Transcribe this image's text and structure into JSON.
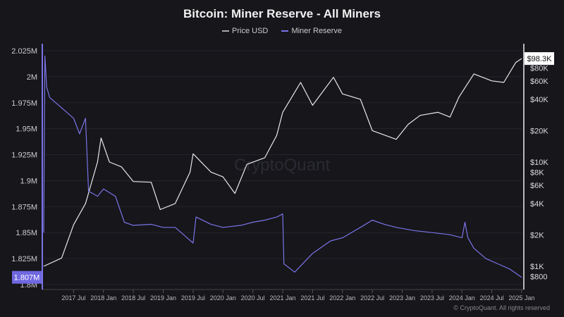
{
  "chart_data": {
    "type": "line",
    "title": "Bitcoin: Miner Reserve - All Miners",
    "legend_position": "top",
    "watermark": "CryptoQuant",
    "copyright": "© CryptoQuant. All rights reserved",
    "x_ticks": [
      "2017 Jul",
      "2018 Jan",
      "2018 Jul",
      "2019 Jan",
      "2019 Jul",
      "2020 Jan",
      "2020 Jul",
      "2021 Jan",
      "2021 Jul",
      "2022 Jan",
      "2022 Jul",
      "2023 Jan",
      "2023 Jul",
      "2024 Jan",
      "2024 Jul",
      "2025 Jan"
    ],
    "y_left": {
      "ticks": [
        "1.8M",
        "1.825M",
        "1.85M",
        "1.875M",
        "1.9M",
        "1.925M",
        "1.95M",
        "1.975M",
        "2M",
        "2.025M"
      ],
      "range": [
        1.8,
        2.025
      ],
      "current_label": "1.807M"
    },
    "y_right": {
      "scale": "log",
      "ticks": [
        "$800",
        "$1K",
        "$2K",
        "$4K",
        "$6K",
        "$8K",
        "$10K",
        "$20K",
        "$40K",
        "$60K",
        "$80K"
      ],
      "tick_values": [
        800,
        1000,
        2000,
        4000,
        6000,
        8000,
        10000,
        20000,
        40000,
        60000,
        80000
      ],
      "current_label": "$98.3K"
    },
    "grid": true,
    "series": [
      {
        "name": "Price USD",
        "color": "#e8e8e8",
        "axis": "right",
        "x": [
          2017.0,
          2017.3,
          2017.5,
          2017.7,
          2017.9,
          2017.96,
          2018.1,
          2018.3,
          2018.5,
          2018.8,
          2018.95,
          2019.2,
          2019.45,
          2019.5,
          2019.8,
          2020.0,
          2020.2,
          2020.4,
          2020.7,
          2020.9,
          2021.0,
          2021.3,
          2021.5,
          2021.85,
          2022.0,
          2022.3,
          2022.5,
          2022.9,
          2023.1,
          2023.3,
          2023.6,
          2023.8,
          2023.95,
          2024.2,
          2024.5,
          2024.7,
          2024.9,
          2025.0
        ],
        "values": [
          1000,
          1200,
          2500,
          4000,
          10000,
          17000,
          10000,
          9000,
          6500,
          6400,
          3500,
          4000,
          8000,
          12000,
          8000,
          7200,
          5000,
          9500,
          11000,
          18000,
          30000,
          58000,
          35000,
          65000,
          45000,
          40000,
          20000,
          16500,
          23000,
          28000,
          30000,
          27000,
          42000,
          70000,
          60000,
          58000,
          90000,
          98300
        ]
      },
      {
        "name": "Miner Reserve",
        "color": "#7b74e6",
        "axis": "left",
        "x": [
          2017.0,
          2017.02,
          2017.05,
          2017.1,
          2017.3,
          2017.5,
          2017.6,
          2017.7,
          2017.75,
          2017.9,
          2018.0,
          2018.2,
          2018.35,
          2018.5,
          2018.8,
          2019.0,
          2019.2,
          2019.4,
          2019.5,
          2019.55,
          2019.8,
          2020.0,
          2020.3,
          2020.5,
          2020.7,
          2020.9,
          2021.0,
          2021.02,
          2021.2,
          2021.5,
          2021.8,
          2022.0,
          2022.3,
          2022.5,
          2022.7,
          2022.9,
          2023.2,
          2023.5,
          2023.8,
          2024.0,
          2024.05,
          2024.1,
          2024.2,
          2024.4,
          2024.6,
          2024.8,
          2025.0
        ],
        "values": [
          1.85,
          2.02,
          1.99,
          1.98,
          1.97,
          1.96,
          1.945,
          1.96,
          1.89,
          1.885,
          1.892,
          1.885,
          1.86,
          1.857,
          1.858,
          1.855,
          1.855,
          1.845,
          1.84,
          1.865,
          1.858,
          1.855,
          1.857,
          1.86,
          1.862,
          1.865,
          1.868,
          1.82,
          1.812,
          1.83,
          1.842,
          1.845,
          1.855,
          1.862,
          1.858,
          1.855,
          1.852,
          1.85,
          1.848,
          1.845,
          1.86,
          1.845,
          1.835,
          1.825,
          1.82,
          1.815,
          1.807
        ]
      }
    ]
  }
}
